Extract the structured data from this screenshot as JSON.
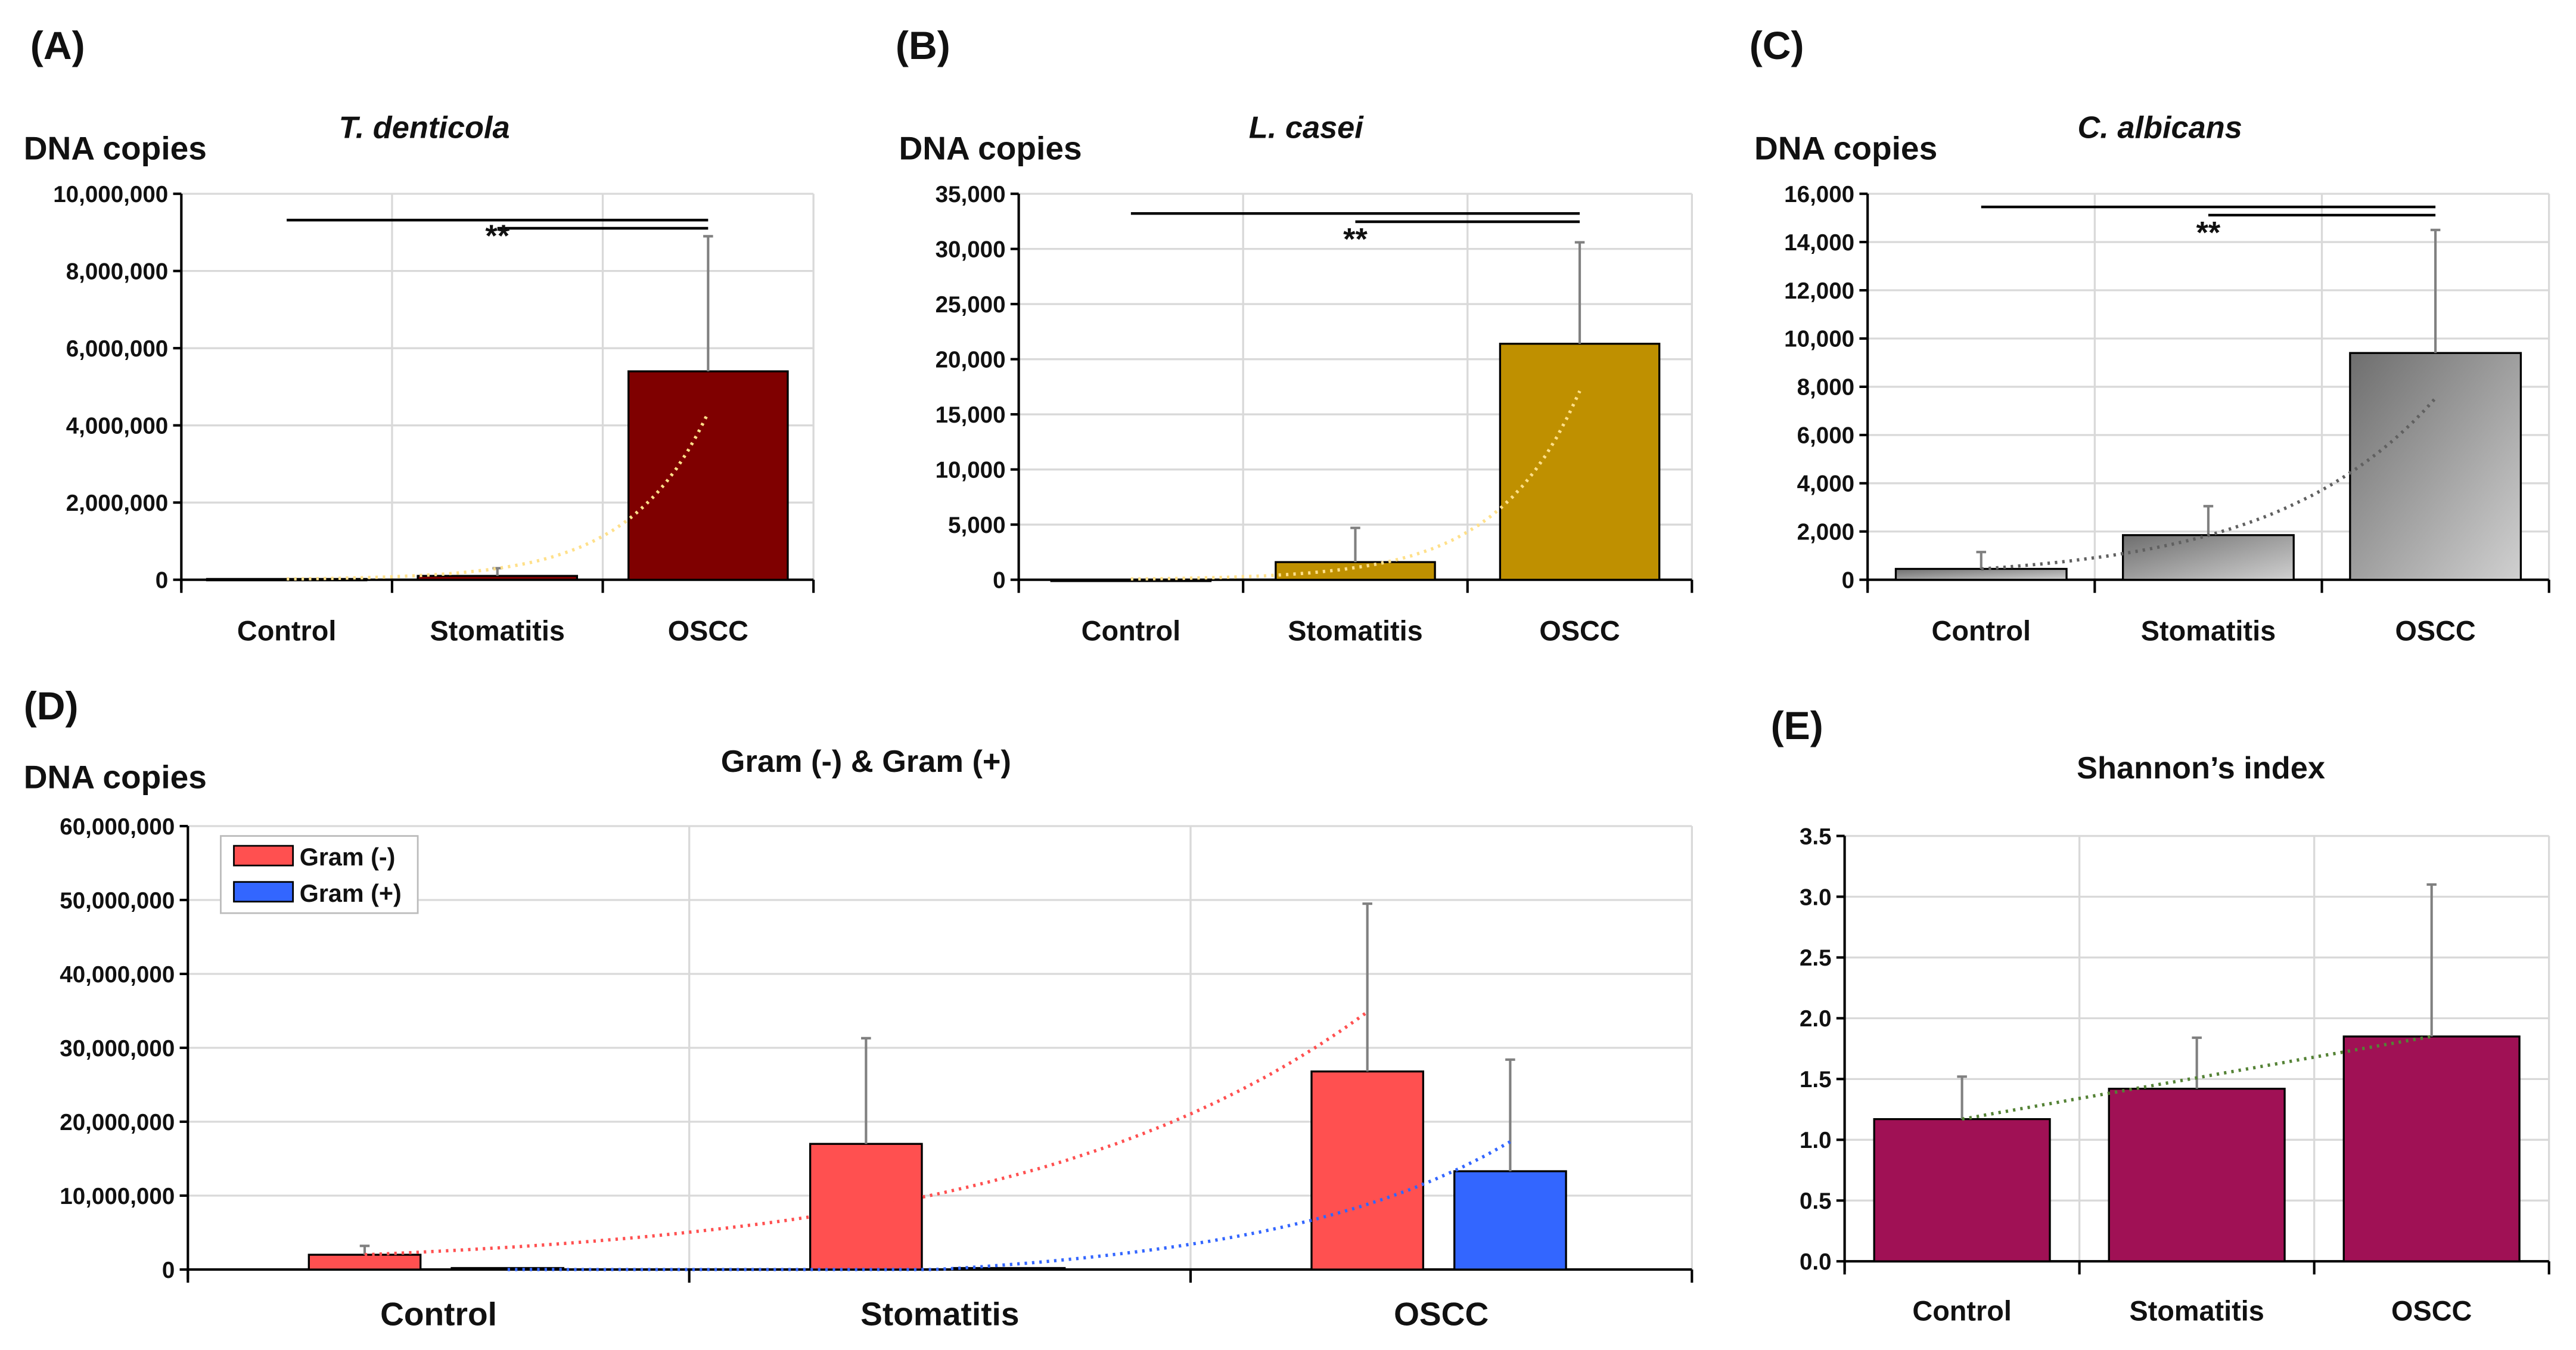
{
  "chart_data": [
    {
      "panel": "(A)",
      "type": "bar",
      "title": "T. denticola",
      "ylabel": "DNA copies",
      "categories": [
        "Control",
        "Stomatitis",
        "OSCC"
      ],
      "values": [
        20000,
        100000,
        5400000
      ],
      "errors": [
        20000,
        300000,
        8900000
      ],
      "ylim": [
        0,
        10000000
      ],
      "ystep": 2000000,
      "color": "#7f0000",
      "trend_color": "#ffe08a",
      "significance": "**",
      "grid": true
    },
    {
      "panel": "(B)",
      "type": "bar",
      "title": "L. casei",
      "ylabel": "DNA copies",
      "categories": [
        "Control",
        "Stomatitis",
        "OSCC"
      ],
      "values": [
        0,
        1600,
        21400
      ],
      "errors": [
        0,
        4700,
        30600
      ],
      "ylim": [
        0,
        35000
      ],
      "ystep": 5000,
      "color": "#bf9000",
      "trend_color": "#ffe08a",
      "significance": "**",
      "grid": true
    },
    {
      "panel": "(C)",
      "type": "bar",
      "title": "C. albicans",
      "ylabel": "DNA copies",
      "categories": [
        "Control",
        "Stomatitis",
        "OSCC"
      ],
      "values": [
        450,
        1850,
        9400
      ],
      "errors": [
        1150,
        3050,
        14500
      ],
      "ylim": [
        0,
        16000
      ],
      "ystep": 2000,
      "color": "#a6a6a6",
      "trend_color": "#606060",
      "significance": "**",
      "grid": true
    },
    {
      "panel": "(D)",
      "type": "bar",
      "title": "Gram (-) & Gram (+)",
      "ylabel": "DNA copies",
      "categories": [
        "Control",
        "Stomatitis",
        "OSCC"
      ],
      "series": [
        {
          "name": "Gram (-)",
          "values": [
            2000000,
            17000000,
            26800000
          ],
          "errors": [
            3200000,
            31300000,
            49500000
          ],
          "color": "#ff5050"
        },
        {
          "name": "Gram (+)",
          "values": [
            200000,
            200000,
            13300000
          ],
          "errors": [
            200000,
            200000,
            28400000
          ],
          "color": "#3366ff"
        }
      ],
      "ylim": [
        0,
        60000000
      ],
      "ystep": 10000000,
      "legend": "top-left",
      "grid": true
    },
    {
      "panel": "(E)",
      "type": "bar",
      "title": "Shannon’s index",
      "ylabel": "",
      "categories": [
        "Control",
        "Stomatitis",
        "OSCC"
      ],
      "values": [
        1.17,
        1.42,
        1.85
      ],
      "errors": [
        1.52,
        1.84,
        3.1
      ],
      "ylim": [
        0,
        3.5
      ],
      "ystep": 0.5,
      "decimals": 1,
      "color": "#a01155",
      "trend_color": "#548235",
      "grid": true
    }
  ]
}
